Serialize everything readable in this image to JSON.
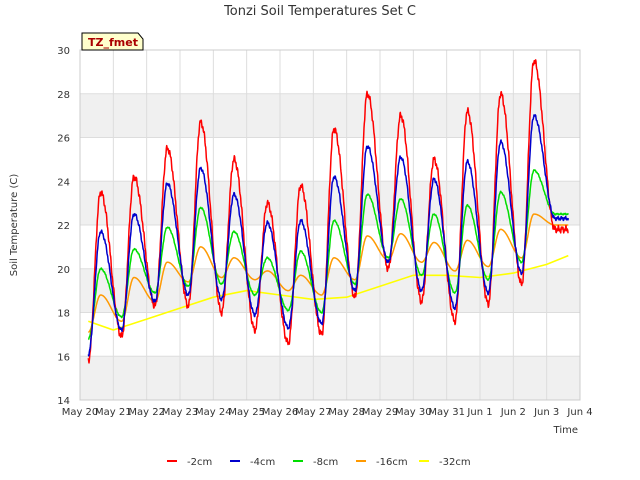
{
  "chart_data": {
    "type": "line",
    "title": "Tonzi Soil Temperatures Set C",
    "xlabel": "Time",
    "ylabel": "Soil Temperature (C)",
    "badge": "TZ_fmet",
    "ylim": [
      14,
      30
    ],
    "yticks": [
      14,
      16,
      18,
      20,
      22,
      24,
      26,
      28,
      30
    ],
    "xlim": [
      0,
      15
    ],
    "xticks": [
      {
        "pos": 0,
        "label": "May 20"
      },
      {
        "pos": 1,
        "label": "May 21"
      },
      {
        "pos": 2,
        "label": "May 22"
      },
      {
        "pos": 3,
        "label": "May 23"
      },
      {
        "pos": 4,
        "label": "May 24"
      },
      {
        "pos": 5,
        "label": "May 25"
      },
      {
        "pos": 6,
        "label": "May 26"
      },
      {
        "pos": 7,
        "label": "May 27"
      },
      {
        "pos": 8,
        "label": "May 28"
      },
      {
        "pos": 9,
        "label": "May 29"
      },
      {
        "pos": 10,
        "label": "May 30"
      },
      {
        "pos": 11,
        "label": "May 31"
      },
      {
        "pos": 12,
        "label": "Jun 1"
      },
      {
        "pos": 13,
        "label": "Jun 2"
      },
      {
        "pos": 14,
        "label": "Jun 3"
      },
      {
        "pos": 15,
        "label": "Jun 4"
      }
    ],
    "grid": true,
    "legend_position": "bottom",
    "day_start": 0.25,
    "day_end": 14.65,
    "series": [
      {
        "name": "-2cm",
        "color": "#ff0000",
        "min": [
          15.8,
          16.9,
          18.3,
          18.3,
          18.0,
          17.2,
          16.6,
          17.0,
          18.7,
          20.0,
          18.5,
          17.6,
          18.4,
          19.3,
          21.8
        ],
        "max": [
          23.5,
          24.2,
          25.5,
          26.7,
          25.0,
          23.0,
          23.8,
          26.4,
          28.0,
          27.0,
          25.0,
          27.2,
          28.0,
          29.5
        ]
      },
      {
        "name": "-4cm",
        "color": "#0000cc",
        "min": [
          16.1,
          17.2,
          18.5,
          18.8,
          18.6,
          17.9,
          17.3,
          17.5,
          19.0,
          20.3,
          19.0,
          18.2,
          18.9,
          19.8,
          22.3
        ],
        "max": [
          21.7,
          22.5,
          23.9,
          24.6,
          23.4,
          22.1,
          22.2,
          24.2,
          25.6,
          25.1,
          24.1,
          24.9,
          25.8,
          27.0
        ]
      },
      {
        "name": "-8cm",
        "color": "#00dd00",
        "min": [
          16.8,
          17.8,
          18.9,
          19.2,
          19.3,
          18.8,
          18.1,
          18.0,
          19.3,
          20.5,
          19.7,
          18.9,
          19.5,
          20.3,
          22.5
        ],
        "max": [
          20.0,
          20.9,
          21.9,
          22.8,
          21.7,
          20.5,
          20.8,
          22.2,
          23.4,
          23.2,
          22.5,
          22.9,
          23.5,
          24.5
        ]
      },
      {
        "name": "-16cm",
        "color": "#ff9900",
        "min": [
          17.1,
          17.6,
          18.5,
          19.4,
          19.6,
          19.5,
          19.0,
          18.8,
          19.5,
          20.4,
          20.3,
          19.9,
          20.1,
          20.5,
          22.0
        ],
        "max": [
          18.8,
          19.6,
          20.3,
          21.0,
          20.5,
          19.9,
          19.7,
          20.5,
          21.5,
          21.6,
          21.2,
          21.3,
          21.8,
          22.5
        ]
      }
    ],
    "smooth_series": {
      "name": "-32cm",
      "color": "#ffff00",
      "x": [
        0.25,
        1.0,
        2.0,
        3.0,
        4.0,
        5.0,
        6.0,
        7.0,
        8.0,
        9.0,
        10.0,
        11.0,
        12.0,
        13.0,
        14.0,
        14.65
      ],
      "y": [
        17.6,
        17.2,
        17.7,
        18.2,
        18.7,
        19.0,
        18.8,
        18.6,
        18.7,
        19.2,
        19.7,
        19.7,
        19.6,
        19.8,
        20.2,
        20.6
      ]
    }
  }
}
